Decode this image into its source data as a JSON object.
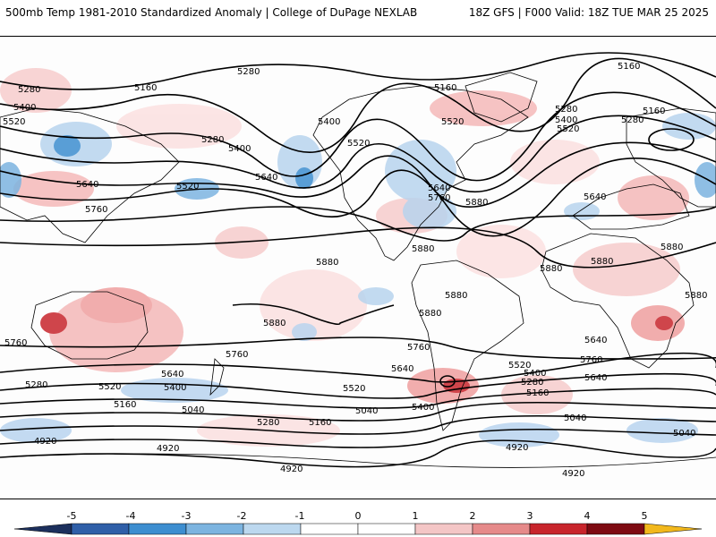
{
  "header": {
    "left_title": "500mb Temp 1981-2010 Standardized Anomaly | College of DuPage NEXLAB",
    "right_title": "18Z GFS | F000 Valid: 18Z TUE MAR 25 2025"
  },
  "map": {
    "contour_labels": [
      "5280",
      "5160",
      "5280",
      "5400",
      "5520",
      "5160",
      "5280",
      "5400",
      "5640",
      "5520",
      "5400",
      "5640",
      "5760",
      "5520",
      "5160",
      "5280",
      "5400",
      "5520",
      "5640",
      "5760",
      "5640",
      "5880",
      "5880",
      "5880",
      "5880",
      "5880",
      "5880",
      "5880",
      "5880",
      "5880",
      "5760",
      "5760",
      "5760",
      "5640",
      "5640",
      "5520",
      "5520",
      "5400",
      "5280",
      "5160",
      "5040",
      "5040",
      "5160",
      "5280",
      "5400",
      "5520",
      "5640",
      "5160",
      "5280",
      "5400",
      "4920",
      "4920",
      "4920",
      "4920",
      "5040",
      "5160",
      "5280",
      "5520",
      "5640",
      "5760",
      "5880",
      "5040",
      "4920"
    ],
    "colors": {
      "positive_anomaly": "#f4b8b8",
      "strong_positive": "#c8252c",
      "negative_anomaly": "#b8d4ee",
      "strong_negative": "#3d8ed0",
      "coastline": "#000000",
      "contour": "#000000"
    }
  },
  "colorbar": {
    "labels": [
      "-5",
      "-4",
      "-3",
      "-2",
      "-1",
      "0",
      "1",
      "2",
      "3",
      "4",
      "5"
    ],
    "colors": [
      "#1c2f5c",
      "#2f5fa8",
      "#3d8ed0",
      "#7cb4e0",
      "#bcd8ef",
      "#ffffff",
      "#ffffff",
      "#f4c6c6",
      "#e68a8a",
      "#c8252c",
      "#7e0a12",
      "#f2b81c"
    ]
  }
}
